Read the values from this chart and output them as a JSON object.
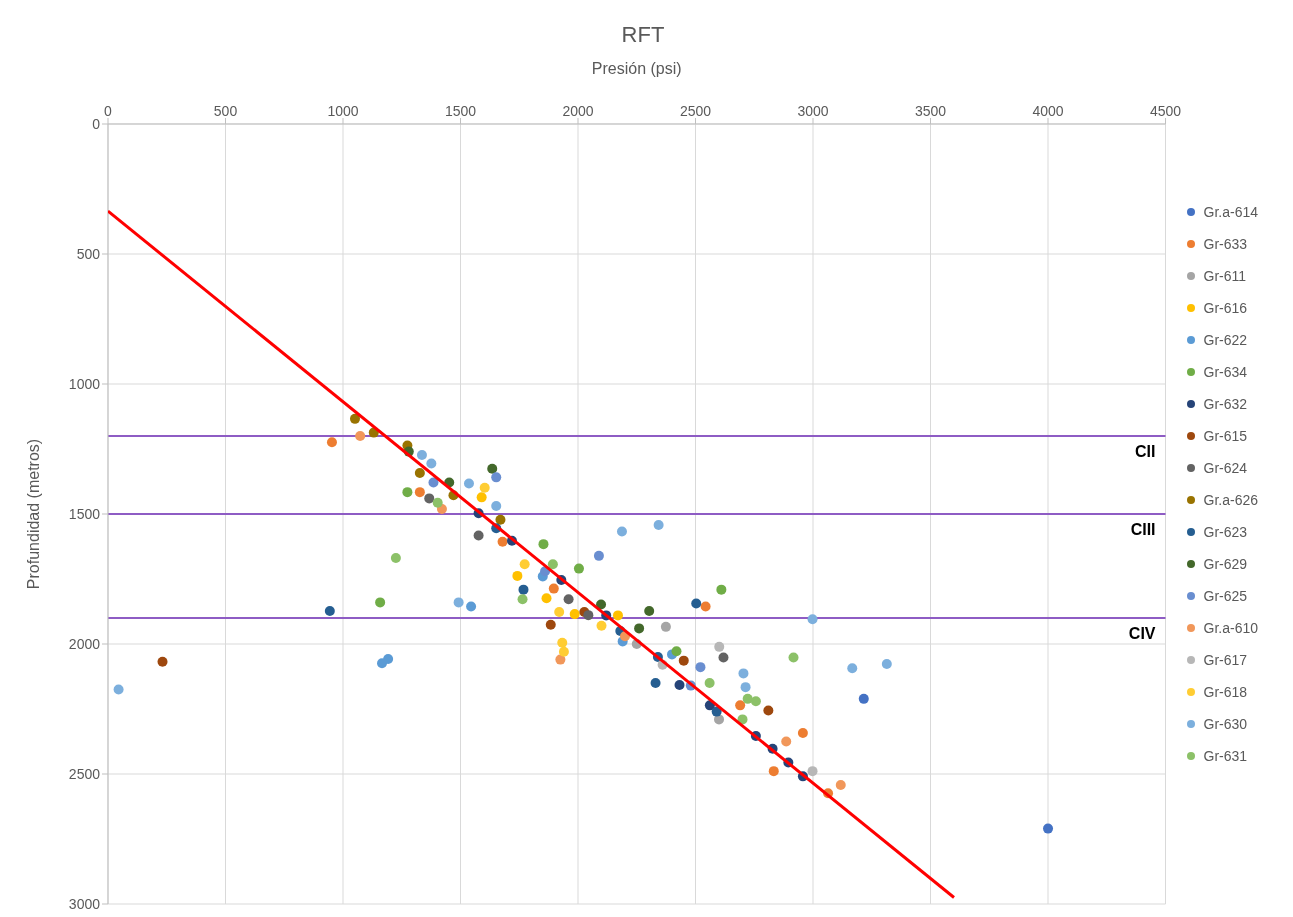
{
  "chart_data": {
    "type": "scatter",
    "title": "RFT",
    "xlabel": "Presión (psi)",
    "ylabel": "Profundidad (metros)",
    "xlim": [
      0,
      4500
    ],
    "xticks": [
      0,
      500,
      1000,
      1500,
      2000,
      2500,
      3000,
      3500,
      4000,
      4500
    ],
    "ylim": [
      3000,
      0
    ],
    "yticks": [
      0,
      500,
      1000,
      1500,
      2000,
      2500,
      3000
    ],
    "grid": true,
    "legend": "right",
    "marker": "circle",
    "ref_lines": [
      {
        "axis": "y",
        "value": 1200,
        "label": "CII",
        "color": "#8e5cc4"
      },
      {
        "axis": "y",
        "value": 1500,
        "label": "CIII",
        "color": "#8e5cc4"
      },
      {
        "axis": "y",
        "value": 1900,
        "label": "CIV",
        "color": "#8e5cc4"
      }
    ],
    "series": [
      {
        "name": "Gr.a-614",
        "color": "#4472c4",
        "x": [
          4000,
          3216
        ],
        "values": [
          2710,
          2211
        ]
      },
      {
        "name": "Gr-633",
        "color": "#ed7d31",
        "x": [
          953,
          1327,
          1679,
          1897,
          2543,
          2690,
          2957,
          2833,
          3064
        ],
        "values": [
          1224,
          1416,
          1607,
          1787,
          1856,
          2236,
          2342,
          2489,
          2574
        ]
      },
      {
        "name": "Gr-611",
        "color": "#a5a5a5",
        "x": [
          2374,
          2600,
          2250
        ],
        "values": [
          1934,
          2290,
          2000
        ]
      },
      {
        "name": "Gr-616",
        "color": "#ffc000",
        "x": [
          1590,
          1742,
          1866,
          1986,
          2170
        ],
        "values": [
          1436,
          1738,
          1824,
          1885,
          1890
        ]
      },
      {
        "name": "Gr-622",
        "color": "#5b9bd5",
        "x": [
          1192,
          1166,
          1545,
          1850,
          2190,
          2400
        ],
        "values": [
          2058,
          2074,
          1856,
          1740,
          1990,
          2040
        ]
      },
      {
        "name": "Gr-634",
        "color": "#70ad47",
        "x": [
          1158,
          1274,
          1853,
          2004,
          2610,
          2419
        ],
        "values": [
          1840,
          1416,
          1616,
          1710,
          1791,
          2028
        ]
      },
      {
        "name": "Gr-632",
        "color": "#264478",
        "x": [
          1577,
          1719,
          1929,
          2120,
          2432,
          2561,
          2757,
          2828,
          2895,
          2957
        ],
        "values": [
          1497,
          1603,
          1754,
          1890,
          2158,
          2236,
          2354,
          2403,
          2456,
          2509
        ]
      },
      {
        "name": "Gr-615",
        "color": "#9e480e",
        "x": [
          232,
          1884,
          2027,
          2450,
          2810
        ],
        "values": [
          2068,
          1926,
          1877,
          2064,
          2256
        ]
      },
      {
        "name": "Gr-624",
        "color": "#636363",
        "x": [
          1367,
          1577,
          1960,
          2044,
          2619
        ],
        "values": [
          1440,
          1583,
          1828,
          1889,
          2052
        ]
      },
      {
        "name": "Gr.a-626",
        "color": "#997300",
        "x": [
          1051,
          1131,
          1274,
          1327,
          1470,
          1670
        ],
        "values": [
          1134,
          1187,
          1237,
          1342,
          1428,
          1522
        ]
      },
      {
        "name": "Gr-623",
        "color": "#255e91",
        "x": [
          944,
          1768,
          1652,
          2503,
          2180,
          2340,
          2590,
          2330
        ],
        "values": [
          1873,
          1791,
          1555,
          1844,
          1950,
          2050,
          2260,
          2150
        ]
      },
      {
        "name": "Gr-629",
        "color": "#43682b",
        "x": [
          1635,
          1452,
          2098,
          2303,
          1280,
          2260
        ],
        "values": [
          1326,
          1379,
          1848,
          1873,
          1260,
          1940
        ]
      },
      {
        "name": "Gr-625",
        "color": "#698ed0",
        "x": [
          1385,
          1652,
          2089,
          2521,
          1860,
          2480
        ],
        "values": [
          1379,
          1359,
          1661,
          2089,
          1720,
          2160
        ]
      },
      {
        "name": "Gr.a-610",
        "color": "#f1975a",
        "x": [
          1073,
          1421,
          1925,
          2886,
          3118,
          2200
        ],
        "values": [
          1200,
          1481,
          2060,
          2375,
          2542,
          1970
        ]
      },
      {
        "name": "Gr-617",
        "color": "#b7b7b7",
        "x": [
          2601,
          2998,
          2360
        ],
        "values": [
          2011,
          2489,
          2080
        ]
      },
      {
        "name": "Gr-618",
        "color": "#ffcd33",
        "x": [
          1603,
          1773,
          1920,
          1933,
          1940,
          2100
        ],
        "values": [
          1399,
          1693,
          1877,
          1995,
          2030,
          1930
        ]
      },
      {
        "name": "Gr-630",
        "color": "#7cafdd",
        "x": [
          45,
          1492,
          1336,
          1376,
          1536,
          1652,
          2187,
          2343,
          2998,
          3167,
          3314,
          2704,
          2713
        ],
        "values": [
          2175,
          1840,
          1273,
          1306,
          1383,
          1469,
          1567,
          1542,
          1905,
          2093,
          2077,
          2113,
          2166
        ]
      },
      {
        "name": "Gr-631",
        "color": "#8cc168",
        "x": [
          1225,
          1403,
          1764,
          1893,
          2917,
          2722,
          2757,
          2560,
          2700
        ],
        "values": [
          1669,
          1457,
          1828,
          1693,
          2052,
          2211,
          2220,
          2150,
          2290
        ]
      },
      {
        "type": "line",
        "marker": "none",
        "color": "#ff0000",
        "x": [
          0,
          3600
        ],
        "values": [
          335,
          2975
        ]
      }
    ]
  }
}
